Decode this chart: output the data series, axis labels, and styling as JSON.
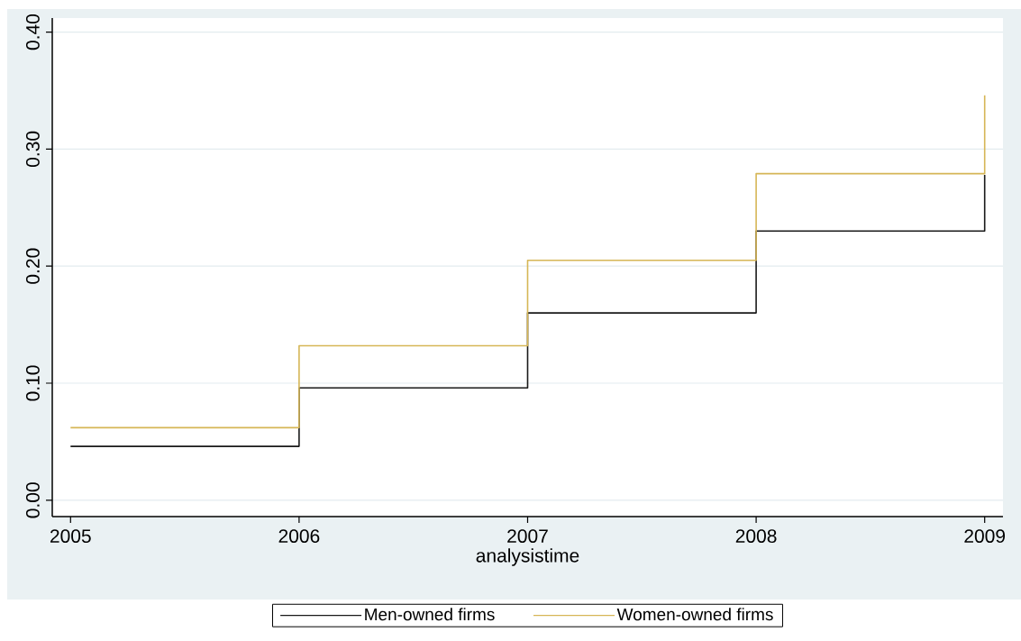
{
  "chart_data": {
    "type": "step",
    "xlabel": "analysistime",
    "x": [
      2005,
      2006,
      2007,
      2008,
      2009
    ],
    "series": [
      {
        "name": "Men-owned firms",
        "color": "#1a1a1a",
        "values": [
          0.046,
          0.096,
          0.16,
          0.23,
          0.278
        ]
      },
      {
        "name": "Women-owned firms",
        "color": "#d6b656",
        "values": [
          0.062,
          0.132,
          0.205,
          0.279,
          0.346
        ]
      }
    ],
    "xlim": [
      2004.92,
      2009.08
    ],
    "ylim": [
      -0.014,
      0.412
    ],
    "xticks": [
      2005,
      2006,
      2007,
      2008,
      2009
    ],
    "yticks": [
      {
        "value": 0,
        "label": "0.00"
      },
      {
        "value": 0.1,
        "label": "0.10"
      },
      {
        "value": 0.2,
        "label": "0.20"
      },
      {
        "value": 0.3,
        "label": "0.30"
      },
      {
        "value": 0.4,
        "label": "0.40"
      }
    ],
    "grid": "y",
    "legend": "bottom",
    "line_style": "solid",
    "marker": "none"
  }
}
